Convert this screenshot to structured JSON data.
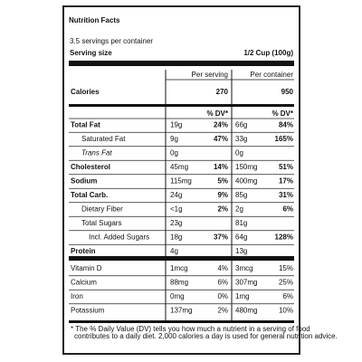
{
  "header": {
    "title": "Nutrition Facts",
    "servings": "3.5 servings per container",
    "serving_size_label": "Serving size",
    "serving_size_value": "1/2 Cup (100g)"
  },
  "columns": {
    "per_serving": "Per serving",
    "per_container": "Per container",
    "dv": "% DV*"
  },
  "calories": {
    "label": "Calories",
    "per_serving": "270",
    "per_container": "950"
  },
  "nutrients": [
    {
      "name": "Total Fat",
      "serving": "19g",
      "serving_dv": "24%",
      "container": "66g",
      "container_dv": "84%"
    },
    {
      "name": "Saturated Fat",
      "serving": "9g",
      "serving_dv": "47%",
      "container": "33g",
      "container_dv": "165%"
    },
    {
      "name": "Trans Fat",
      "serving": "0g",
      "container": "0g"
    },
    {
      "name": "Cholesterol",
      "serving": "45mg",
      "serving_dv": "14%",
      "container": "150mg",
      "container_dv": "51%"
    },
    {
      "name": "Sodium",
      "serving": "115mg",
      "serving_dv": "5%",
      "container": "400mg",
      "container_dv": "17%"
    },
    {
      "name": "Total Carb.",
      "serving": "24g",
      "serving_dv": "9%",
      "container": "85g",
      "container_dv": "31%"
    },
    {
      "name": "Dietary Fiber",
      "serving": "<1g",
      "serving_dv": "2%",
      "container": "2g",
      "container_dv": "6%"
    },
    {
      "name": "Total Sugars",
      "serving": "23g",
      "container": "81g"
    },
    {
      "name": "Incl. Added Sugars",
      "serving": "18g",
      "serving_dv": "37%",
      "container": "64g",
      "container_dv": "128%"
    },
    {
      "name": "Protein",
      "serving": "4g",
      "container": "13g"
    }
  ],
  "vitamins": [
    {
      "name": "Vitamin D",
      "serving": "1mcg",
      "serving_dv": "4%",
      "container": "3mcg",
      "container_dv": "15%"
    },
    {
      "name": "Calcium",
      "serving": "88mg",
      "serving_dv": "6%",
      "container": "307mg",
      "container_dv": "25%"
    },
    {
      "name": "Iron",
      "serving": "0mg",
      "serving_dv": "0%",
      "container": "1mg",
      "container_dv": "6%"
    },
    {
      "name": "Potassium",
      "serving": "137mg",
      "serving_dv": "2%",
      "container": "480mg",
      "container_dv": "10%"
    }
  ],
  "footnote": [
    "* The % Daily Value (DV) tells you how much a nutrient in a serving of food",
    "contributes to a daily diet. 2,000 calories a day is used for general nutrition advice."
  ]
}
